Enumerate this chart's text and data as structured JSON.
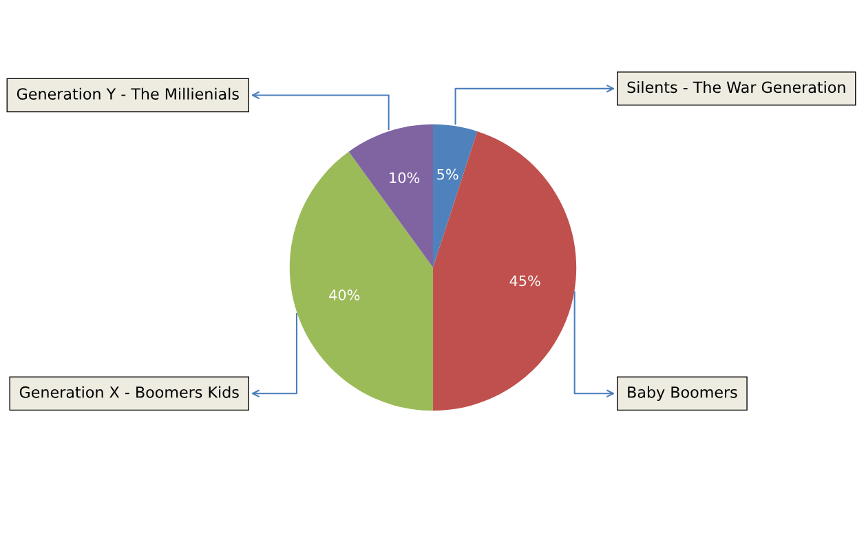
{
  "chart_data": {
    "type": "pie",
    "categories": [
      "Silents - The War Generation",
      "Baby Boomers",
      "Generation X - Boomers Kids",
      "Generation Y - The Millienials"
    ],
    "values": [
      5,
      45,
      40,
      10
    ],
    "colors": [
      "#4f81bd",
      "#c0504d",
      "#9bbb59",
      "#8064a2"
    ],
    "value_labels": [
      "5%",
      "45%",
      "40%",
      "10%"
    ]
  }
}
